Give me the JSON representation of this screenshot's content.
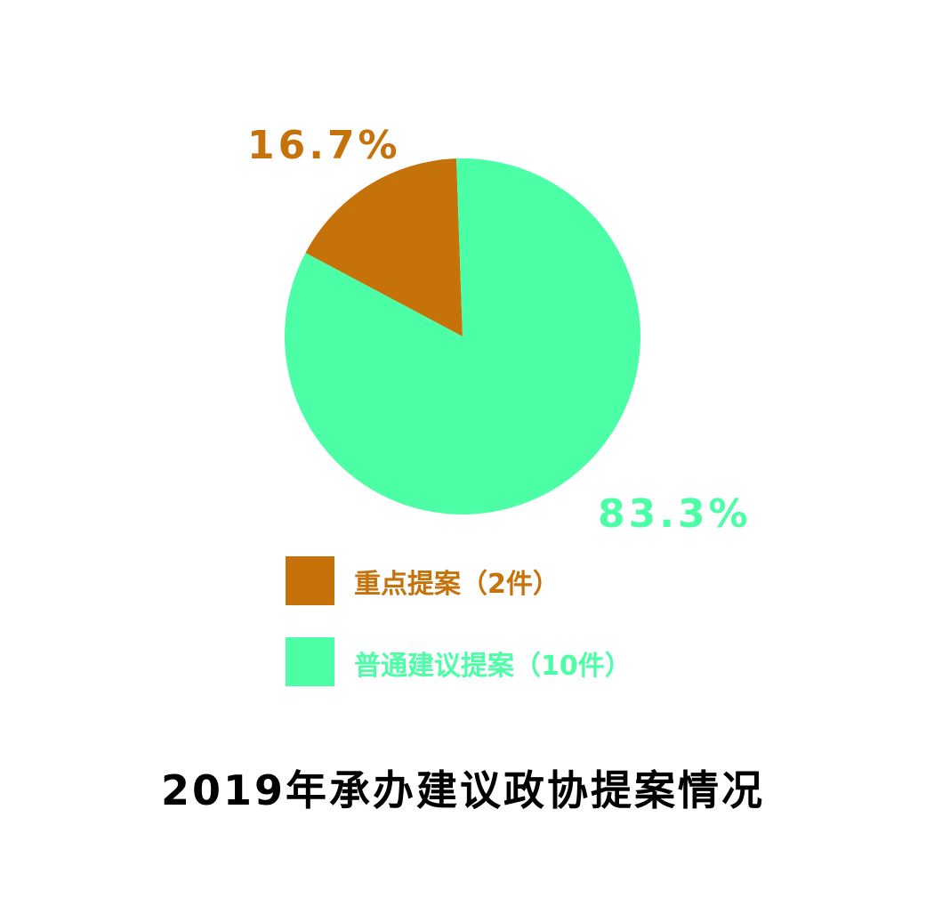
{
  "chart_data": {
    "type": "pie",
    "title": "2019年承办建议政协提案情况",
    "slices": [
      {
        "label": "重点提案（2件）",
        "value": 2,
        "percent_label": "16.7%",
        "color": "#C5720B"
      },
      {
        "label": "普通建议提案（10件）",
        "value": 10,
        "percent_label": "83.3%",
        "color": "#4CFFA6"
      }
    ],
    "legend_position": "bottom"
  }
}
